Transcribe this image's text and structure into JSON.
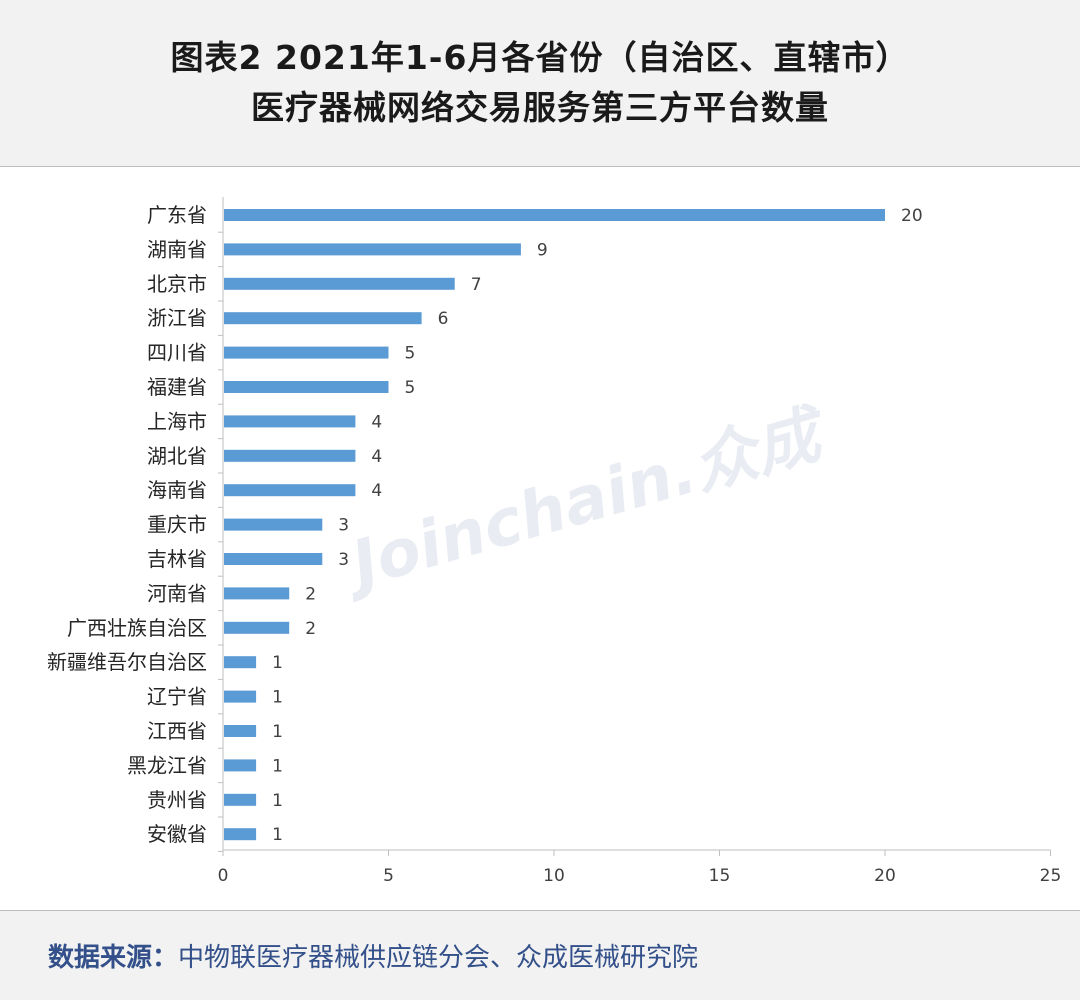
{
  "title": {
    "line1": "图表2 2021年1-6月各省份（自治区、直辖市）",
    "line2": "医疗器械网络交易服务第三方平台数量"
  },
  "watermark": "Joinchain.众成",
  "footer": {
    "label": "数据来源：",
    "text": "中物联医疗器械供应链分会、众成医械研究院"
  },
  "chart_data": {
    "type": "bar",
    "orientation": "horizontal",
    "categories": [
      "广东省",
      "湖南省",
      "北京市",
      "浙江省",
      "四川省",
      "福建省",
      "上海市",
      "湖北省",
      "海南省",
      "重庆市",
      "吉林省",
      "河南省",
      "广西壮族自治区",
      "新疆维吾尔自治区",
      "辽宁省",
      "江西省",
      "黑龙江省",
      "贵州省",
      "安徽省"
    ],
    "values": [
      20,
      9,
      7,
      6,
      5,
      5,
      4,
      4,
      4,
      3,
      3,
      2,
      2,
      1,
      1,
      1,
      1,
      1,
      1
    ],
    "xlim": [
      0,
      25
    ],
    "xticks": [
      0,
      5,
      10,
      15,
      20,
      25
    ],
    "bar_color": "#5b9bd5",
    "grid": false,
    "data_labels": true
  }
}
